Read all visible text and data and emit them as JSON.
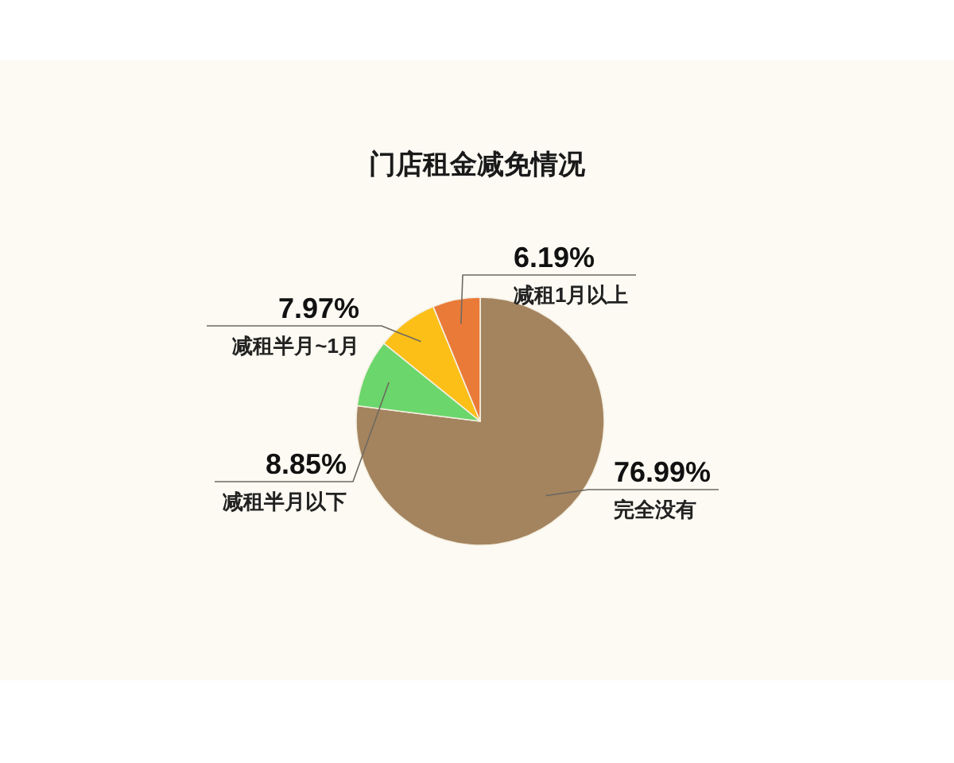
{
  "chart_data": {
    "type": "pie",
    "title": "门店租金减免情况",
    "categories": [
      "完全没有",
      "减租半月以下",
      "减租半月~1月",
      "减租1月以上"
    ],
    "values": [
      76.99,
      8.85,
      7.97,
      6.19
    ],
    "colors": [
      "#a4845f",
      "#6bd66b",
      "#fcbf17",
      "#ea7a38"
    ],
    "value_labels": [
      "76.99%",
      "8.85%",
      "7.97%",
      "6.19%"
    ]
  }
}
